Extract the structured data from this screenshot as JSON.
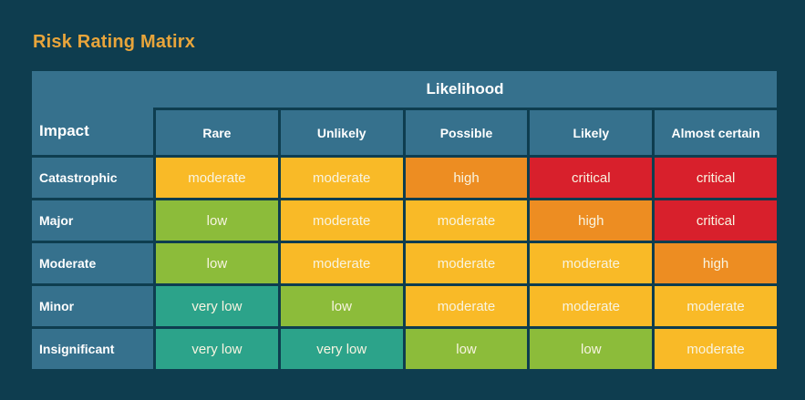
{
  "title": "Risk Rating Matirx",
  "header": {
    "likelihood_label": "Likelihood",
    "impact_label": "Impact"
  },
  "chart_data": {
    "type": "heatmap",
    "title": "Risk Rating Matirx",
    "x_axis_group_label": "Likelihood",
    "y_axis_group_label": "Impact",
    "x_categories": [
      "Rare",
      "Unlikely",
      "Possible",
      "Likely",
      "Almost certain"
    ],
    "y_categories": [
      "Catastrophic",
      "Major",
      "Moderate",
      "Minor",
      "Insignificant"
    ],
    "values": [
      [
        "moderate",
        "moderate",
        "high",
        "critical",
        "critical"
      ],
      [
        "low",
        "moderate",
        "moderate",
        "high",
        "critical"
      ],
      [
        "low",
        "moderate",
        "moderate",
        "moderate",
        "high"
      ],
      [
        "very low",
        "low",
        "moderate",
        "moderate",
        "moderate"
      ],
      [
        "very low",
        "very low",
        "low",
        "low",
        "moderate"
      ]
    ],
    "color_scale": {
      "very low": "#2ca38a",
      "low": "#8cbc3a",
      "moderate": "#f9ba27",
      "high": "#ed8d22",
      "critical": "#d8202c"
    }
  },
  "colors": {
    "background": "#0e3d4f",
    "panel_header": "#36718d",
    "title_text": "#e8a53b",
    "header_text": "#ffffff",
    "cell_text": "#f8f4e1"
  }
}
